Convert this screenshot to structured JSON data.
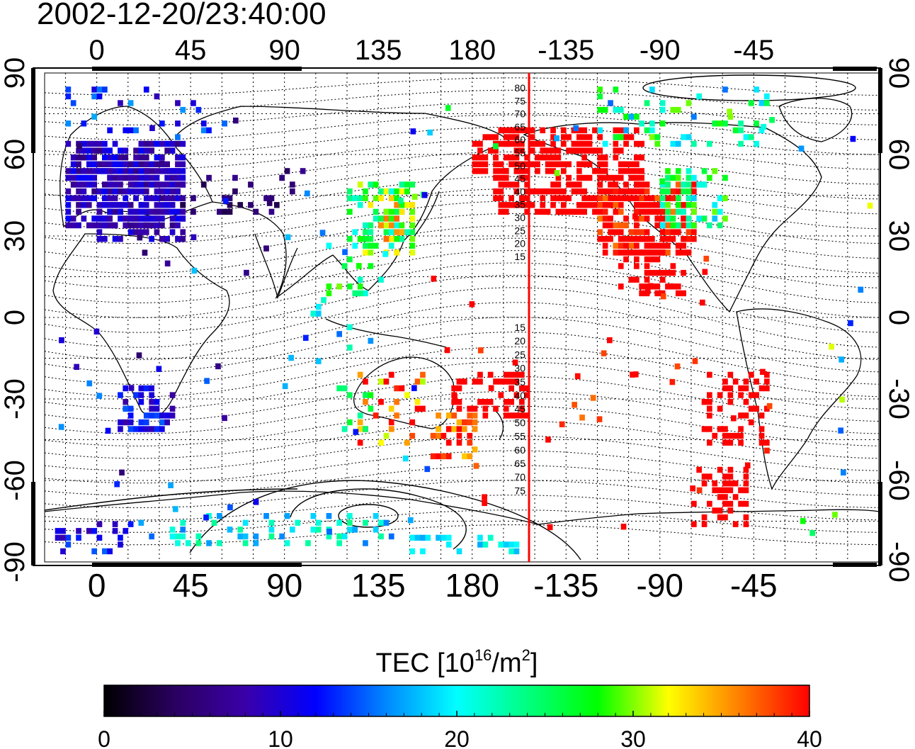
{
  "title": "2002-12-20/23:40:00",
  "top_axis_labels": [
    "0",
    "45",
    "90",
    "135",
    "180",
    "-135",
    "-90",
    "-45"
  ],
  "bottom_axis_labels": [
    "0",
    "45",
    "90",
    "135",
    "180",
    "-135",
    "-90",
    "-45"
  ],
  "left_axis_labels": [
    "90",
    "60",
    "30",
    "0",
    "-30",
    "-60",
    "-90"
  ],
  "right_axis_labels": [
    "90",
    "60",
    "30",
    "0",
    "-30",
    "-60",
    "-90"
  ],
  "magnetic_latitude_labels_north": [
    "80",
    "75",
    "70",
    "65",
    "60",
    "55",
    "50",
    "45",
    "40",
    "35",
    "30",
    "25",
    "20",
    "15"
  ],
  "magnetic_latitude_labels_south": [
    "15",
    "20",
    "25",
    "30",
    "35",
    "40",
    "45",
    "50",
    "55",
    "60",
    "65",
    "70",
    "75"
  ],
  "colorbar": {
    "title_prefix": "TEC  [10",
    "title_exp": "16",
    "title_mid": "/m",
    "title_exp2": "2",
    "title_suffix": "]",
    "tick_labels": [
      "0",
      "10",
      "20",
      "30",
      "40"
    ],
    "min": 0,
    "max": 40,
    "colors": [
      "#000000",
      "#2a0060",
      "#3a00a8",
      "#0000ff",
      "#0088ff",
      "#00ffff",
      "#00ff80",
      "#00ff00",
      "#ffff00",
      "#ff8000",
      "#ff0000"
    ]
  },
  "map": {
    "lon_range": [
      -25,
      375
    ],
    "lat_range": [
      -90,
      90
    ],
    "lon_tick_values": [
      0,
      45,
      90,
      135,
      180,
      225,
      270,
      315
    ],
    "lat_tick_values": [
      90,
      60,
      30,
      0,
      -30,
      -60,
      -90
    ],
    "terminator_longitude": 185,
    "terminator_color": "#ff0000"
  }
}
